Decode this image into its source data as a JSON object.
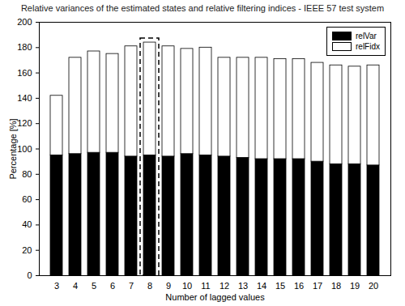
{
  "chart_data": {
    "type": "bar",
    "title": "Relative variances of the estimated states and relative filtering indices - IEEE 57 test system",
    "x_label": "Number of lagged values",
    "y_label": "Percentage [%]",
    "categories": [
      3,
      4,
      5,
      6,
      7,
      8,
      9,
      10,
      11,
      12,
      13,
      14,
      15,
      16,
      17,
      18,
      19,
      20
    ],
    "series": [
      {
        "name": "relVar",
        "color": "#000000",
        "values": [
          95,
          96,
          97,
          97,
          94,
          95,
          94,
          96,
          95,
          94,
          93,
          92,
          92,
          92,
          90,
          88,
          88,
          87
        ]
      },
      {
        "name": "relFidx",
        "color": "#ffffff",
        "values": [
          47,
          76,
          80,
          78,
          87,
          89,
          87,
          83,
          85,
          78,
          79,
          80,
          79,
          79,
          78,
          78,
          77,
          79
        ]
      }
    ],
    "stacked": true,
    "ylim": [
      0,
      200
    ],
    "yticks": [
      0,
      20,
      40,
      60,
      80,
      100,
      120,
      140,
      160,
      180,
      200
    ],
    "legend": "northeast",
    "grid": false
  }
}
